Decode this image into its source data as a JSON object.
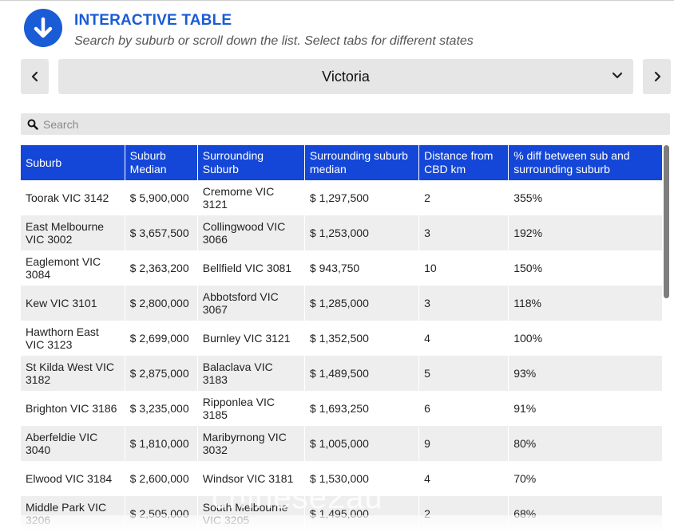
{
  "header": {
    "icon": "download-arrow-icon",
    "title": "INTERACTIVE TABLE",
    "subtitle": "Search by suburb or scroll down the list. Select tabs for different states"
  },
  "selector": {
    "prev_icon": "chevron-left-icon",
    "next_icon": "chevron-right-icon",
    "dropdown_icon": "chevron-down-icon",
    "selected": "Victoria"
  },
  "search": {
    "icon": "search-icon",
    "placeholder": "Search",
    "value": ""
  },
  "table": {
    "headers": [
      "Suburb",
      "Suburb Median",
      "Surrounding Suburb",
      "Surrounding suburb median",
      "Distance from CBD km",
      "% diff between sub and surrounding suburb"
    ],
    "rows": [
      [
        "Toorak VIC 3142",
        "$ 5,900,000",
        "Cremorne VIC 3121",
        "$ 1,297,500",
        "2",
        "355%"
      ],
      [
        "East Melbourne VIC 3002",
        "$ 3,657,500",
        "Collingwood VIC 3066",
        "$ 1,253,000",
        "3",
        "192%"
      ],
      [
        "Eaglemont VIC 3084",
        "$ 2,363,200",
        "Bellfield VIC 3081",
        "$ 943,750",
        "10",
        "150%"
      ],
      [
        "Kew VIC 3101",
        "$ 2,800,000",
        "Abbotsford VIC 3067",
        "$ 1,285,000",
        "3",
        "118%"
      ],
      [
        "Hawthorn East VIC 3123",
        "$ 2,699,000",
        "Burnley VIC 3121",
        "$ 1,352,500",
        "4",
        "100%"
      ],
      [
        "St Kilda West VIC 3182",
        "$ 2,875,000",
        "Balaclava VIC 3183",
        "$ 1,489,500",
        "5",
        "93%"
      ],
      [
        "Brighton VIC 3186",
        "$ 3,235,000",
        "Ripponlea VIC 3185",
        "$ 1,693,250",
        "6",
        "91%"
      ],
      [
        "Aberfeldie VIC 3040",
        "$ 1,810,000",
        "Maribyrnong VIC 3032",
        "$ 1,005,000",
        "9",
        "80%"
      ],
      [
        "Elwood VIC 3184",
        "$ 2,600,000",
        "Windsor VIC 3181",
        "$ 1,530,000",
        "4",
        "70%"
      ],
      [
        "Middle Park VIC 3206",
        "$ 2,505,000",
        "South Melbourne VIC 3205",
        "$ 1,495,000",
        "2",
        "68%"
      ]
    ]
  },
  "watermark": "chinese2au",
  "colors": {
    "accent": "#1a5bd6",
    "header_bg": "#1447d8",
    "control_bg": "#e6e6e6",
    "row_alt": "#eeeeee"
  }
}
